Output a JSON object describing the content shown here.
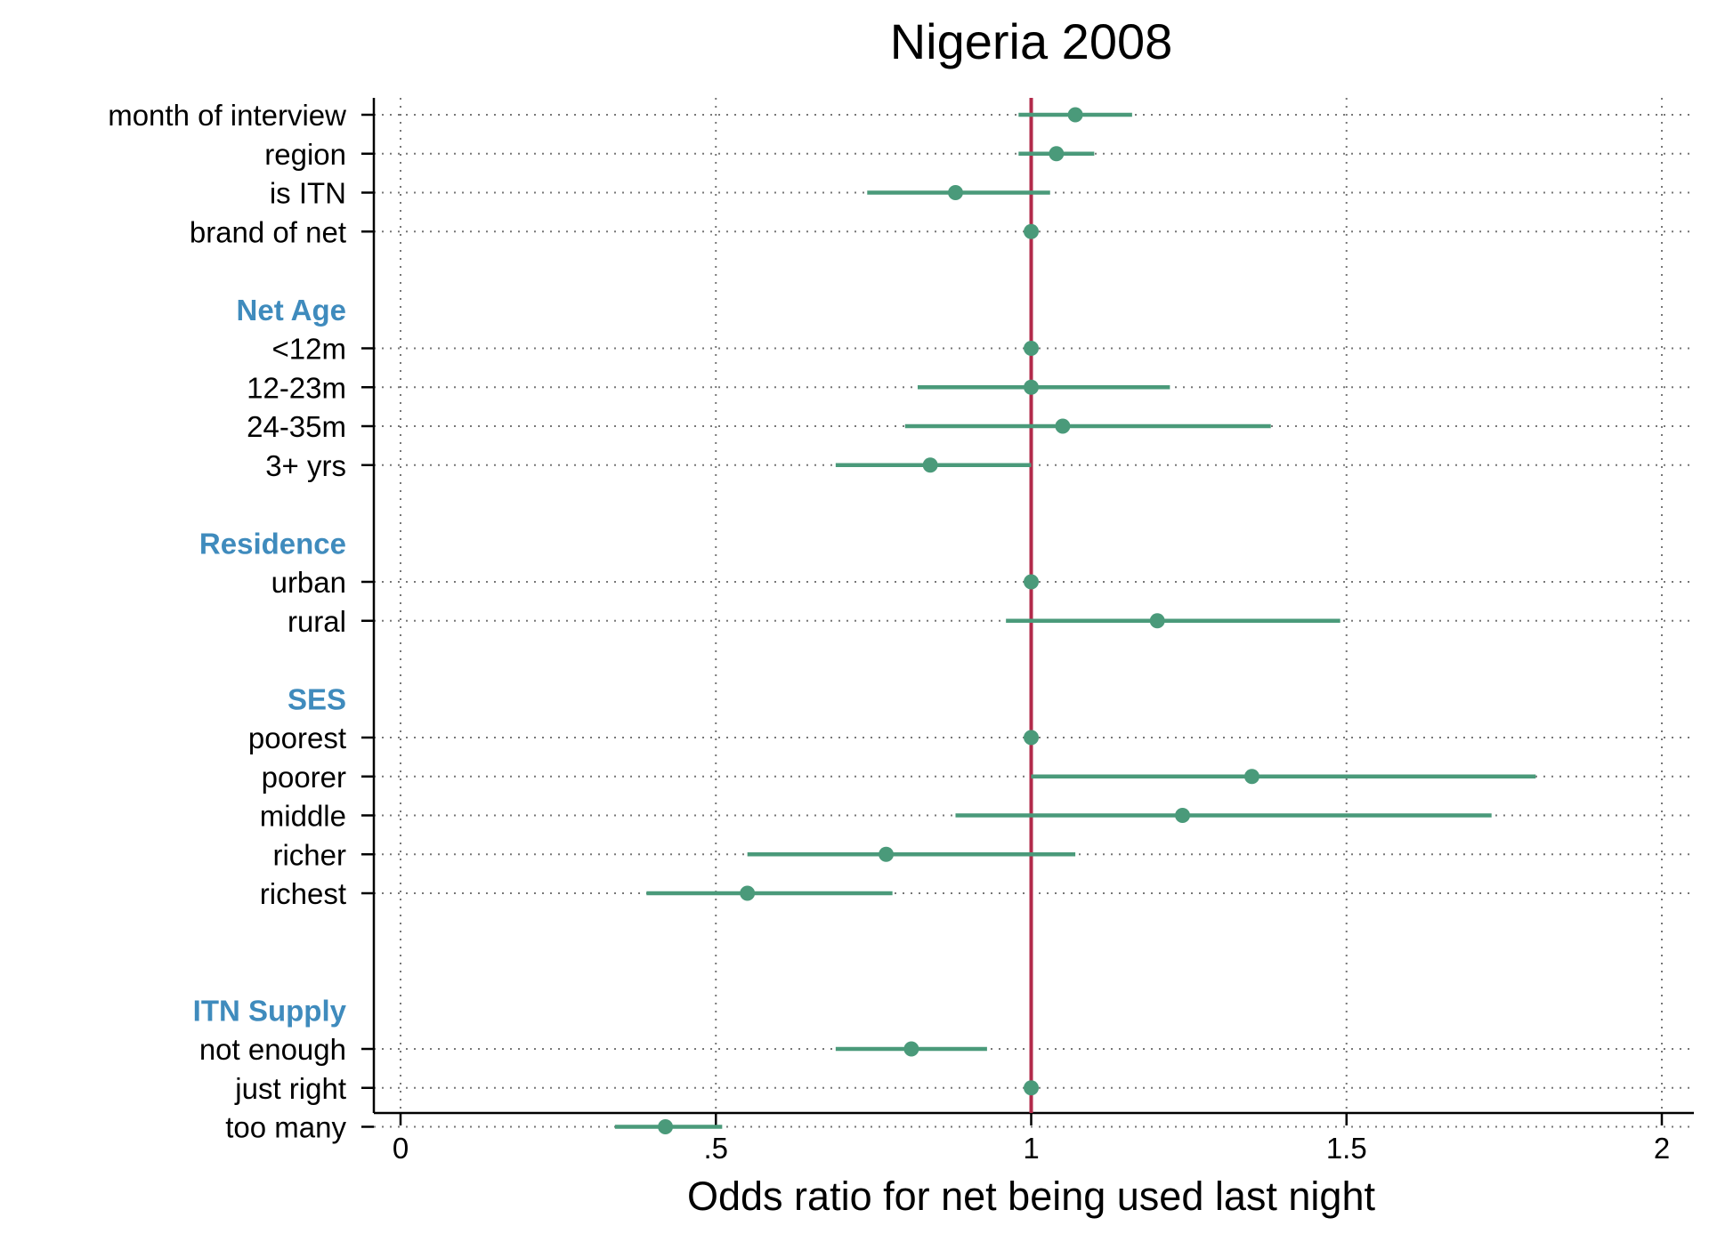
{
  "chart_data": {
    "type": "forest",
    "title": "Nigeria 2008",
    "xlabel": "Odds ratio for net being used last night",
    "xlim": [
      -0.02,
      2.03
    ],
    "xticks": [
      0,
      0.5,
      1,
      1.5,
      2
    ],
    "xtick_labels": [
      "0",
      ".5",
      "1",
      "1.5",
      "2"
    ],
    "reference_line": 1,
    "grid": true,
    "colors": {
      "point": "#4a9a7a",
      "reference": "#b22a4a",
      "group_header": "#3f8bbd",
      "grid": "#777777"
    },
    "rows": [
      {
        "kind": "item",
        "label": "month of interview",
        "or": 1.07,
        "lo": 0.98,
        "hi": 1.16
      },
      {
        "kind": "item",
        "label": "region",
        "or": 1.04,
        "lo": 0.98,
        "hi": 1.1
      },
      {
        "kind": "item",
        "label": "is ITN",
        "or": 0.88,
        "lo": 0.74,
        "hi": 1.03
      },
      {
        "kind": "item",
        "label": "brand of net",
        "or": 1.0,
        "lo": 1.0,
        "hi": 1.0
      },
      {
        "kind": "gap"
      },
      {
        "kind": "header",
        "label": "Net Age"
      },
      {
        "kind": "item",
        "label": "<12m",
        "or": 1.0,
        "lo": 1.0,
        "hi": 1.0
      },
      {
        "kind": "item",
        "label": "12-23m",
        "or": 1.0,
        "lo": 0.82,
        "hi": 1.22
      },
      {
        "kind": "item",
        "label": "24-35m",
        "or": 1.05,
        "lo": 0.8,
        "hi": 1.38
      },
      {
        "kind": "item",
        "label": "3+ yrs",
        "or": 0.84,
        "lo": 0.69,
        "hi": 1.0
      },
      {
        "kind": "gap"
      },
      {
        "kind": "header",
        "label": "Residence"
      },
      {
        "kind": "item",
        "label": "urban",
        "or": 1.0,
        "lo": 1.0,
        "hi": 1.0
      },
      {
        "kind": "item",
        "label": "rural",
        "or": 1.2,
        "lo": 0.96,
        "hi": 1.49
      },
      {
        "kind": "gap"
      },
      {
        "kind": "header",
        "label": "SES"
      },
      {
        "kind": "item",
        "label": "poorest",
        "or": 1.0,
        "lo": 1.0,
        "hi": 1.0
      },
      {
        "kind": "item",
        "label": "poorer",
        "or": 1.35,
        "lo": 1.0,
        "hi": 1.8
      },
      {
        "kind": "item",
        "label": "middle",
        "or": 1.24,
        "lo": 0.88,
        "hi": 1.73
      },
      {
        "kind": "item",
        "label": "richer",
        "or": 0.77,
        "lo": 0.55,
        "hi": 1.07
      },
      {
        "kind": "item",
        "label": "richest",
        "or": 0.55,
        "lo": 0.39,
        "hi": 0.78
      },
      {
        "kind": "gap"
      },
      {
        "kind": "gap"
      },
      {
        "kind": "header",
        "label": "ITN Supply"
      },
      {
        "kind": "item",
        "label": "not enough",
        "or": 0.81,
        "lo": 0.69,
        "hi": 0.93
      },
      {
        "kind": "item",
        "label": "just right",
        "or": 1.0,
        "lo": 1.0,
        "hi": 1.0
      },
      {
        "kind": "item",
        "label": "too many",
        "or": 0.42,
        "lo": 0.34,
        "hi": 0.51
      }
    ]
  }
}
